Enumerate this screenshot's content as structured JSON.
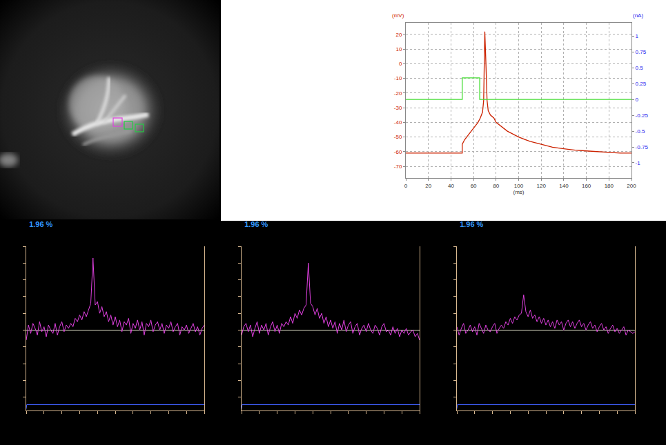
{
  "chart_data": [
    {
      "type": "line",
      "x_label": "(ms)",
      "y_label": "(mV)",
      "y2_label": "(nA)",
      "xlim": [
        0,
        200
      ],
      "xticks": [
        0,
        20,
        40,
        60,
        80,
        100,
        120,
        140,
        160,
        180,
        200
      ],
      "ylim": [
        -78,
        28
      ],
      "yticks": [
        -70,
        -60,
        -50,
        -40,
        -30,
        -20,
        -10,
        0,
        10,
        20
      ],
      "y2lim": [
        -1.24,
        1.21
      ],
      "y2ticks": [
        -1,
        -0.75,
        -0.5,
        -0.25,
        0,
        0.25,
        0.5,
        0.75,
        1
      ],
      "grid": true,
      "series": [
        {
          "color": "#cc2200",
          "x": [
            0,
            10,
            20,
            30,
            40,
            50,
            50,
            52,
            55,
            58,
            61,
            64,
            66,
            68,
            69,
            70,
            71,
            72,
            73,
            75,
            78,
            80,
            90,
            100,
            110,
            120,
            130,
            140,
            150,
            160,
            170,
            180,
            190,
            200
          ],
          "values": [
            -61,
            -61,
            -61,
            -61,
            -61,
            -61,
            -55,
            -52,
            -49,
            -46,
            -43,
            -40,
            -37,
            -33,
            -25,
            22,
            0,
            -25,
            -32,
            -35,
            -37,
            -40,
            -46,
            -50,
            -53,
            -55,
            -57,
            -58,
            -59,
            -59.5,
            -60,
            -60.5,
            -61,
            -61
          ]
        },
        {
          "color": "#44dd33",
          "axis": "y2",
          "x": [
            0,
            50,
            50,
            65.5,
            65.5,
            200
          ],
          "values": [
            0,
            0,
            0.34,
            0.34,
            0,
            0
          ]
        }
      ]
    },
    {
      "type": "line",
      "title": "1.96 %",
      "tick_labels": false,
      "grid": false,
      "xlim": [
        0,
        10
      ],
      "xticks": [
        0,
        1,
        2,
        3,
        4,
        5,
        6,
        7,
        8,
        9,
        10
      ],
      "ylim": [
        -4.8,
        5
      ],
      "yticks": [
        -4,
        -3,
        -2,
        -1,
        0,
        1,
        2,
        3,
        4,
        5
      ],
      "series": [
        {
          "color": "#e040e0",
          "x": [
            0,
            0.125,
            0.25,
            0.375,
            0.5,
            0.625,
            0.75,
            0.875,
            1,
            1.125,
            1.25,
            1.375,
            1.5,
            1.625,
            1.75,
            1.875,
            2,
            2.125,
            2.25,
            2.375,
            2.5,
            2.625,
            2.75,
            2.875,
            3,
            3.125,
            3.25,
            3.375,
            3.5,
            3.625,
            3.75,
            3.875,
            4,
            4.125,
            4.25,
            4.375,
            4.5,
            4.625,
            4.75,
            4.875,
            5,
            5.125,
            5.25,
            5.375,
            5.5,
            5.625,
            5.75,
            5.875,
            6,
            6.125,
            6.25,
            6.375,
            6.5,
            6.625,
            6.75,
            6.875,
            7,
            7.125,
            7.25,
            7.375,
            7.5,
            7.625,
            7.75,
            7.875,
            8,
            8.125,
            8.25,
            8.375,
            8.5,
            8.625,
            8.75,
            8.875,
            9,
            9.125,
            9.25,
            9.375,
            9.5,
            9.625,
            9.75,
            9.875,
            10
          ],
          "values": [
            -0.6,
            0.3,
            -0.2,
            0.4,
            0.1,
            -0.3,
            0.5,
            -0.1,
            0.2,
            -0.4,
            0.3,
            0.0,
            -0.2,
            0.4,
            -0.3,
            0.2,
            0.5,
            -0.1,
            0.3,
            0.1,
            0.4,
            0.2,
            0.7,
            0.5,
            0.9,
            0.6,
            1.1,
            0.8,
            1.2,
            1.6,
            4.3,
            1.5,
            1.7,
            1.0,
            1.4,
            0.8,
            1.1,
            0.5,
            0.9,
            0.3,
            0.8,
            0.2,
            0.6,
            -0.1,
            0.5,
            0.3,
            0.7,
            -0.2,
            0.4,
            0.1,
            0.6,
            0.0,
            0.5,
            -0.3,
            0.4,
            0.2,
            0.6,
            -0.1,
            0.3,
            0.5,
            0.0,
            0.4,
            -0.2,
            0.3,
            0.1,
            0.5,
            -0.1,
            0.2,
            0.4,
            -0.3,
            0.2,
            0.0,
            0.3,
            -0.2,
            0.1,
            0.4,
            -0.1,
            0.2,
            -0.3,
            0.1,
            0.3
          ]
        },
        {
          "color": "#4060ff",
          "x": [
            0,
            0.03,
            10
          ],
          "values": [
            -4.7,
            -4.45,
            -4.45
          ]
        }
      ]
    },
    {
      "type": "line",
      "title": "1.96 %",
      "tick_labels": false,
      "grid": false,
      "xlim": [
        0,
        10
      ],
      "xticks": [
        0,
        1,
        2,
        3,
        4,
        5,
        6,
        7,
        8,
        9,
        10
      ],
      "ylim": [
        -4.8,
        5
      ],
      "yticks": [
        -4,
        -3,
        -2,
        -1,
        0,
        1,
        2,
        3,
        4,
        5
      ],
      "series": [
        {
          "color": "#e040e0",
          "x": [
            0,
            0.125,
            0.25,
            0.375,
            0.5,
            0.625,
            0.75,
            0.875,
            1,
            1.125,
            1.25,
            1.375,
            1.5,
            1.625,
            1.75,
            1.875,
            2,
            2.125,
            2.25,
            2.375,
            2.5,
            2.625,
            2.75,
            2.875,
            3,
            3.125,
            3.25,
            3.375,
            3.5,
            3.625,
            3.75,
            3.875,
            4,
            4.125,
            4.25,
            4.375,
            4.5,
            4.625,
            4.75,
            4.875,
            5,
            5.125,
            5.25,
            5.375,
            5.5,
            5.625,
            5.75,
            5.875,
            6,
            6.125,
            6.25,
            6.375,
            6.5,
            6.625,
            6.75,
            6.875,
            7,
            7.125,
            7.25,
            7.375,
            7.5,
            7.625,
            7.75,
            7.875,
            8,
            8.125,
            8.25,
            8.375,
            8.5,
            8.625,
            8.75,
            8.875,
            9,
            9.125,
            9.25,
            9.375,
            9.5,
            9.625,
            9.75,
            9.875,
            10
          ],
          "values": [
            -0.3,
            0.2,
            0.4,
            -0.1,
            0.3,
            -0.4,
            0.1,
            0.5,
            -0.2,
            0.3,
            0.0,
            0.4,
            -0.3,
            0.2,
            0.5,
            -0.1,
            0.3,
            -0.2,
            0.4,
            0.2,
            0.5,
            0.3,
            0.8,
            0.4,
            1.0,
            0.7,
            1.2,
            0.9,
            1.3,
            1.5,
            4.0,
            1.6,
            1.4,
            0.9,
            1.3,
            0.7,
            1.0,
            0.4,
            0.8,
            0.2,
            0.6,
            0.1,
            0.5,
            -0.2,
            0.4,
            0.0,
            0.6,
            -0.1,
            0.3,
            0.5,
            -0.2,
            0.2,
            0.4,
            -0.3,
            0.1,
            0.3,
            -0.1,
            0.4,
            0.0,
            -0.2,
            0.3,
            0.1,
            -0.3,
            0.2,
            0.4,
            -0.1,
            0.0,
            -0.3,
            0.2,
            -0.2,
            0.1,
            -0.4,
            0.0,
            -0.2,
            0.1,
            -0.3,
            -0.1,
            0.0,
            -0.4,
            -0.2,
            -0.6
          ]
        },
        {
          "color": "#4060ff",
          "x": [
            0,
            0.03,
            10
          ],
          "values": [
            -4.7,
            -4.45,
            -4.45
          ]
        }
      ]
    },
    {
      "type": "line",
      "title": "1.96 %",
      "tick_labels": false,
      "grid": false,
      "xlim": [
        0,
        10
      ],
      "xticks": [
        0,
        1,
        2,
        3,
        4,
        5,
        6,
        7,
        8,
        9,
        10
      ],
      "ylim": [
        -4.8,
        5
      ],
      "yticks": [
        -4,
        -3,
        -2,
        -1,
        0,
        1,
        2,
        3,
        4,
        5
      ],
      "series": [
        {
          "color": "#e040e0",
          "x": [
            0,
            0.125,
            0.25,
            0.375,
            0.5,
            0.625,
            0.75,
            0.875,
            1,
            1.125,
            1.25,
            1.375,
            1.5,
            1.625,
            1.75,
            1.875,
            2,
            2.125,
            2.25,
            2.375,
            2.5,
            2.625,
            2.75,
            2.875,
            3,
            3.125,
            3.25,
            3.375,
            3.5,
            3.625,
            3.75,
            3.875,
            4,
            4.125,
            4.25,
            4.375,
            4.5,
            4.625,
            4.75,
            4.875,
            5,
            5.125,
            5.25,
            5.375,
            5.5,
            5.625,
            5.75,
            5.875,
            6,
            6.125,
            6.25,
            6.375,
            6.5,
            6.625,
            6.75,
            6.875,
            7,
            7.125,
            7.25,
            7.375,
            7.5,
            7.625,
            7.75,
            7.875,
            8,
            8.125,
            8.25,
            8.375,
            8.5,
            8.625,
            8.75,
            8.875,
            9,
            9.125,
            9.25,
            9.375,
            9.5,
            9.625,
            9.75,
            9.875,
            10
          ],
          "values": [
            0.2,
            -0.3,
            0.1,
            0.4,
            -0.2,
            0.0,
            0.3,
            -0.1,
            0.2,
            -0.3,
            0.4,
            0.1,
            -0.2,
            0.3,
            0.0,
            -0.1,
            0.2,
            0.4,
            -0.2,
            0.1,
            0.3,
            0.1,
            0.5,
            0.3,
            0.7,
            0.4,
            0.8,
            0.6,
            0.9,
            1.0,
            2.1,
            1.1,
            0.8,
            1.2,
            0.7,
            0.9,
            0.5,
            0.8,
            0.4,
            0.7,
            0.3,
            0.6,
            0.2,
            0.5,
            0.1,
            0.6,
            0.3,
            0.5,
            0.0,
            0.4,
            0.6,
            0.2,
            0.5,
            0.1,
            0.4,
            0.6,
            0.2,
            0.4,
            0.0,
            0.3,
            0.5,
            0.1,
            0.3,
            -0.1,
            0.2,
            0.4,
            0.0,
            0.2,
            -0.2,
            0.1,
            0.3,
            -0.1,
            0.1,
            -0.2,
            0.0,
            0.2,
            -0.3,
            0.0,
            -0.1,
            -0.2,
            -0.1
          ]
        },
        {
          "color": "#4060ff",
          "x": [
            0,
            0.03,
            10
          ],
          "values": [
            -4.7,
            -4.45,
            -4.45
          ]
        }
      ]
    }
  ]
}
